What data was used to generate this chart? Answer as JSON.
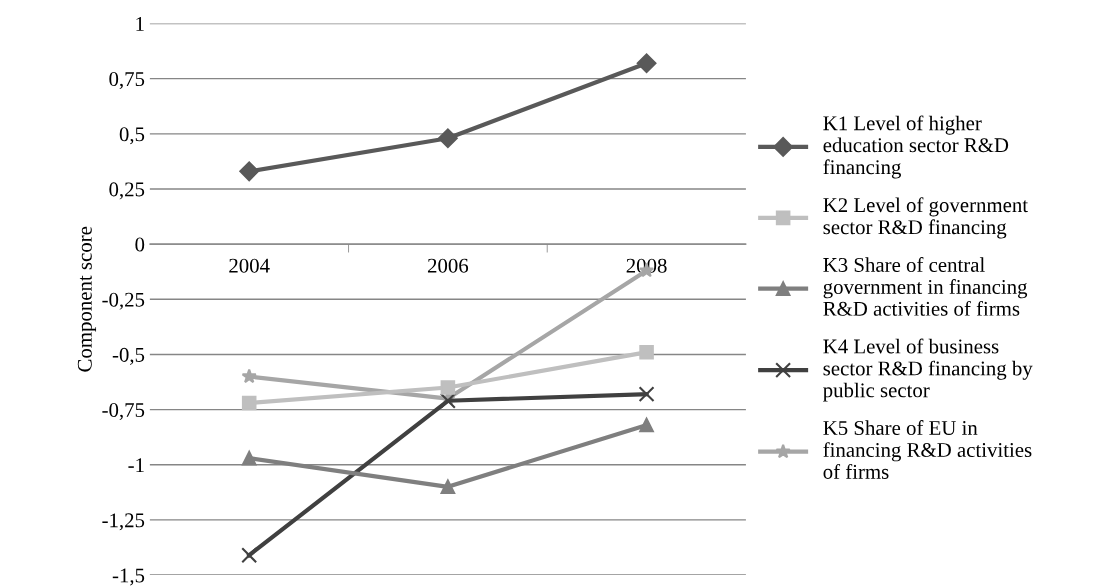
{
  "chart_data": {
    "type": "line",
    "ylabel": "Component score",
    "categories": [
      "2004",
      "2006",
      "2008"
    ],
    "series": [
      {
        "name": "K1 Level of higher education sector R&D financing",
        "color": "#595959",
        "marker": "diamond",
        "values": [
          0.33,
          0.48,
          0.82
        ]
      },
      {
        "name": "K2 Level of government sector R&D financing",
        "color": "#bfbfbf",
        "marker": "square",
        "values": [
          -0.72,
          -0.65,
          -0.49
        ]
      },
      {
        "name": "K3 Share of central government in financing R&D activities of firms",
        "color": "#7f7f7f",
        "marker": "triangle",
        "values": [
          -0.97,
          -1.1,
          -0.82
        ]
      },
      {
        "name": "K4 Level of business sector R&D financing by public sector",
        "color": "#404040",
        "marker": "cross",
        "values": [
          -1.41,
          -0.71,
          -0.68
        ]
      },
      {
        "name": "K5 Share of EU in financing R&D activities of firms",
        "color": "#a6a6a6",
        "marker": "star",
        "values": [
          -0.6,
          -0.7,
          -0.12
        ]
      }
    ],
    "ylim": [
      -1.5,
      1
    ],
    "yticks": [
      {
        "value": -1.5,
        "label": "-1,5"
      },
      {
        "value": -1.25,
        "label": "-1,25"
      },
      {
        "value": -1,
        "label": "-1"
      },
      {
        "value": -0.75,
        "label": "-0,75"
      },
      {
        "value": -0.5,
        "label": "-0,5"
      },
      {
        "value": -0.25,
        "label": "-0,25"
      },
      0,
      {
        "value": 0.25,
        "label": "0,25"
      },
      {
        "value": 0.5,
        "label": "0,5"
      },
      {
        "value": 0.75,
        "label": "0,75"
      },
      1
    ],
    "grid": "y",
    "legend": "right",
    "line_style": "solid"
  }
}
